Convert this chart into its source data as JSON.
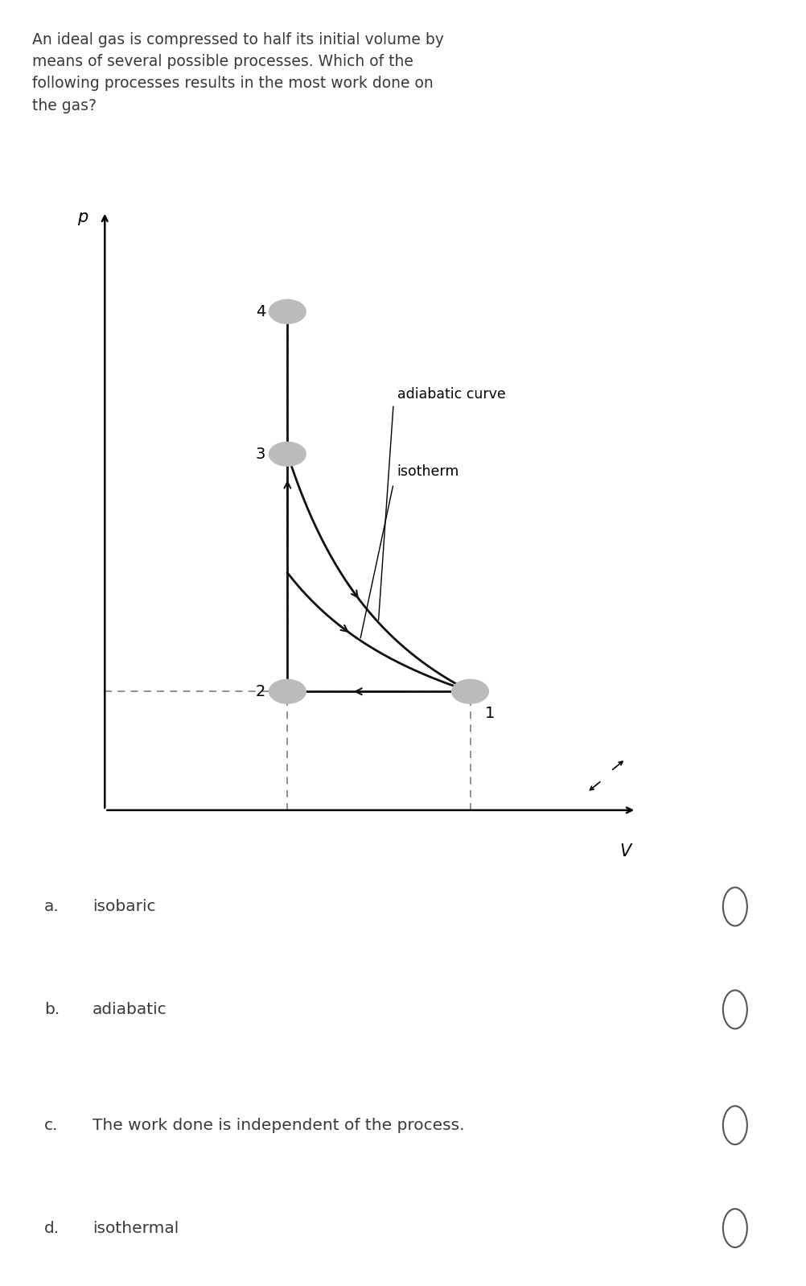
{
  "question_text": "An ideal gas is compressed to half its initial volume by\nmeans of several possible processes. Which of the\nfollowing processes results in the most work done on\nthe gas?",
  "choices": [
    {
      "label": "a.",
      "text": "isobaric"
    },
    {
      "label": "b.",
      "text": "adiabatic"
    },
    {
      "label": "c.",
      "text": "The work done is independent of the process."
    },
    {
      "label": "d.",
      "text": "isothermal"
    }
  ],
  "xlabel": "V",
  "ylabel": "p",
  "label_adiabatic": "adiabatic curve",
  "label_isotherm": "isotherm",
  "bg_color": "#ffffff",
  "text_color": "#3a3a3a",
  "curve_color": "#111111",
  "dashed_color": "#888888",
  "point_color": "#bbbbbb",
  "question_fontsize": 13.5,
  "choice_label_fontsize": 14.5,
  "choice_text_fontsize": 14.5,
  "curve_label_fontsize": 12.5,
  "state_label_fontsize": 14,
  "axis_label_fontsize": 15,
  "V1x": 2.0,
  "V1y": 1.0,
  "V2x": 1.0,
  "V2y": 1.0,
  "V3x": 1.0,
  "V3y": 3.0,
  "V4x": 1.0,
  "V4y": 4.2,
  "xlim": [
    0,
    3.0
  ],
  "ylim": [
    0,
    5.2
  ]
}
